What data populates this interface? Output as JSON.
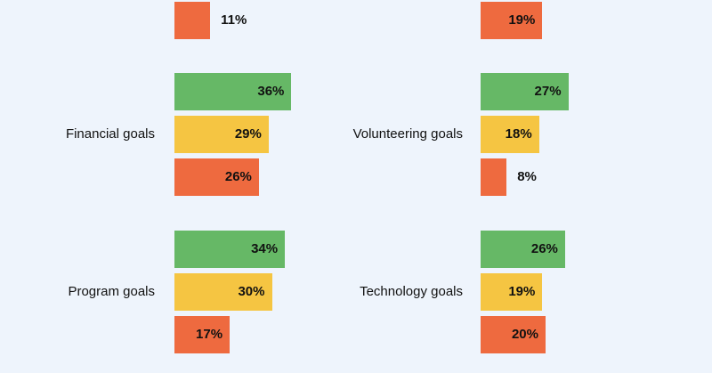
{
  "chart_data": {
    "type": "bar",
    "orientation": "horizontal",
    "colors": {
      "green": "#66b866",
      "yellow": "#f5c542",
      "orange": "#ee6a3f"
    },
    "panels": [
      {
        "category": "",
        "values": [
          11
        ],
        "colors": [
          "orange"
        ],
        "partial_top": true
      },
      {
        "category": "",
        "values": [
          19
        ],
        "colors": [
          "orange"
        ],
        "partial_top": true
      },
      {
        "category": "Financial goals",
        "values": [
          36,
          29,
          26
        ],
        "colors": [
          "green",
          "yellow",
          "orange"
        ]
      },
      {
        "category": "Volunteering goals",
        "values": [
          27,
          18,
          8
        ],
        "colors": [
          "green",
          "yellow",
          "orange"
        ]
      },
      {
        "category": "Program goals",
        "values": [
          34,
          30,
          17
        ],
        "colors": [
          "green",
          "yellow",
          "orange"
        ]
      },
      {
        "category": "Technology goals",
        "values": [
          26,
          19,
          20
        ],
        "colors": [
          "green",
          "yellow",
          "orange"
        ]
      }
    ],
    "value_suffix": "%"
  }
}
